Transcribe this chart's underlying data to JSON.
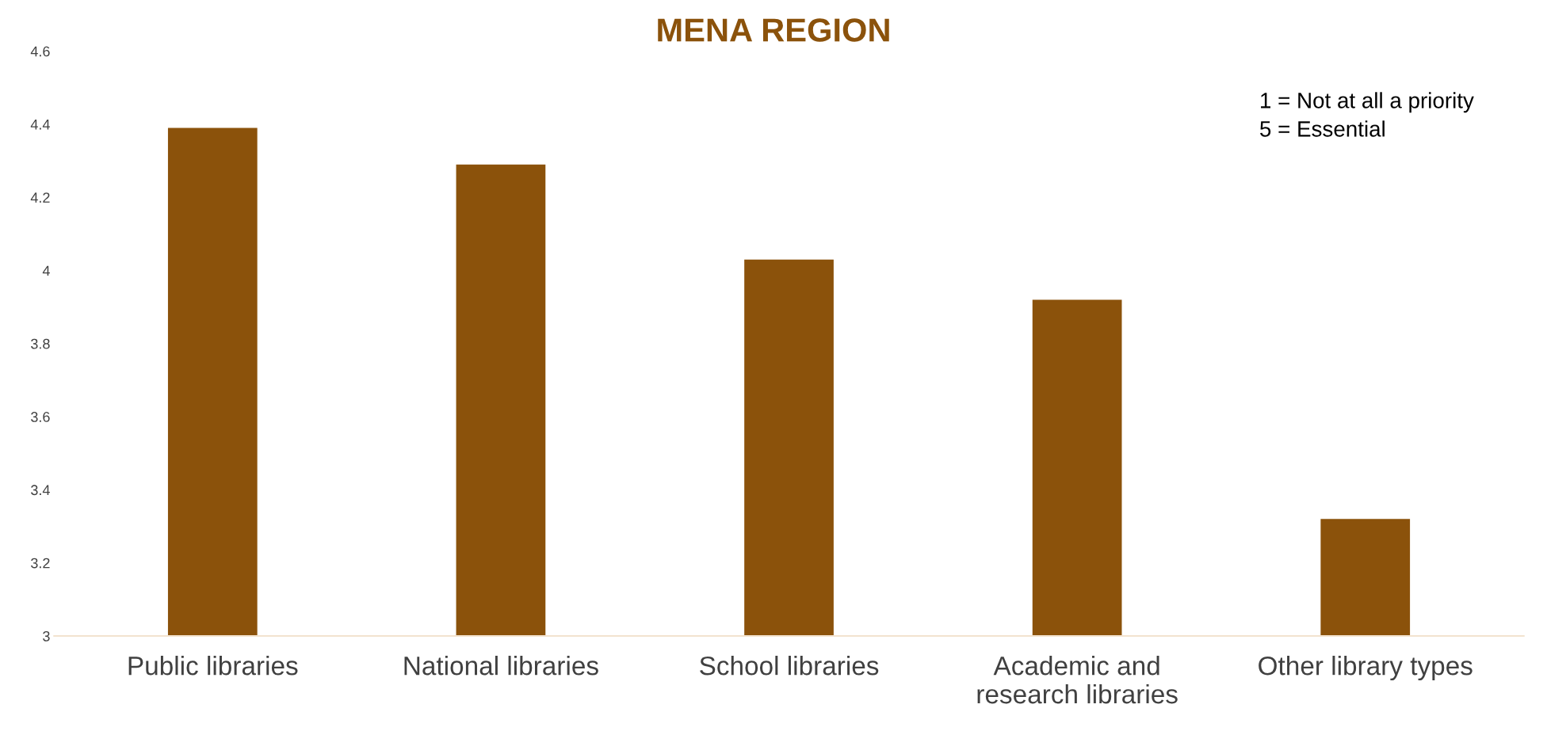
{
  "chart_data": {
    "type": "bar",
    "title": "MENA REGION",
    "categories": [
      "Public libraries",
      "National libraries",
      "School libraries",
      "Academic and\nresearch libraries",
      "Other library types"
    ],
    "values": [
      4.39,
      4.29,
      4.03,
      3.92,
      3.32
    ],
    "color": "#8b520b",
    "ylim": [
      3,
      4.6
    ],
    "yticks": [
      3,
      3.2,
      3.4,
      3.6,
      3.8,
      4,
      4.2,
      4.4,
      4.6
    ],
    "grid": false,
    "legend": false,
    "annotations": [
      "1 = Not at all a priority\n5 = Essential"
    ]
  }
}
